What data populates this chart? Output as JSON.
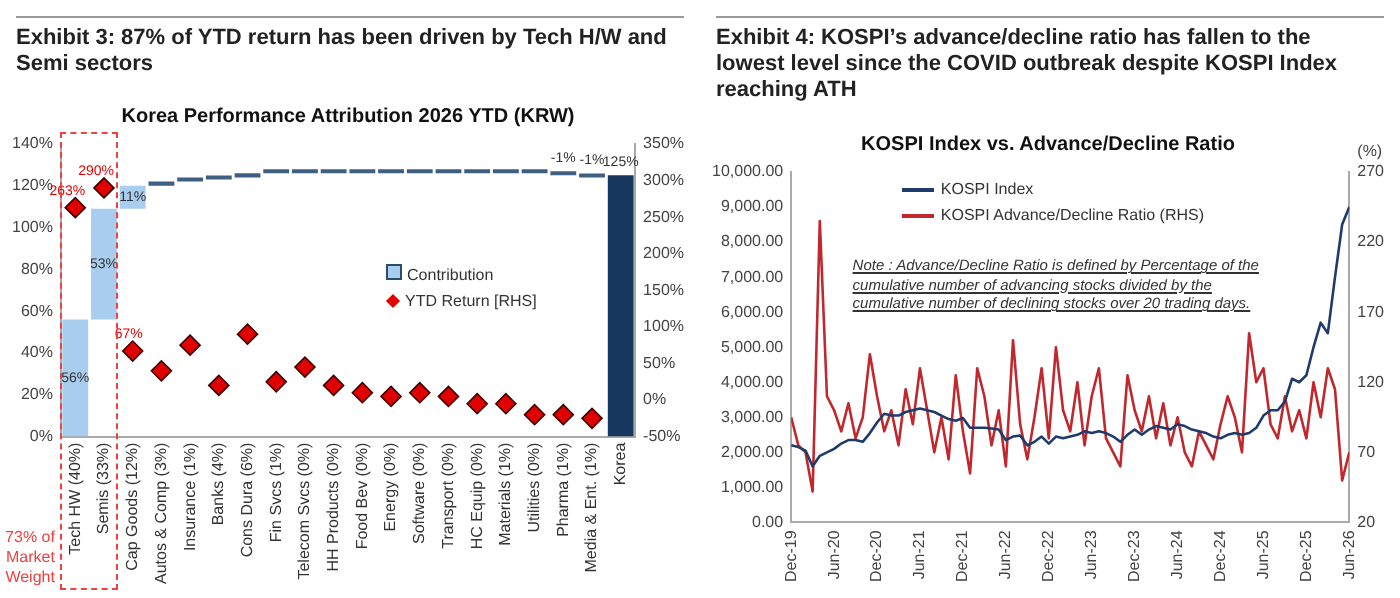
{
  "chart_data": [
    {
      "type": "bar",
      "title": "Exhibit 3: 87% of YTD return has been driven by Tech H/W and Semi sectors",
      "subtitle": "Korea Performance Attribution 2026 YTD (KRW)",
      "categories": [
        "Tech HW (40%)",
        "Semis (33%)",
        "Cap Goods (12%)",
        "Autos & Comp (3%)",
        "Insurance (1%)",
        "Banks (4%)",
        "Cons Dura (6%)",
        "Fin Svcs (1%)",
        "Telecom Svcs (0%)",
        "HH Products (0%)",
        "Food Bev (0%)",
        "Energy (0%)",
        "Software (0%)",
        "Transport (0%)",
        "HC Equip (0%)",
        "Materials (1%)",
        "Utilities (0%)",
        "Pharma (1%)",
        "Media & Ent. (1%)",
        "Korea"
      ],
      "series": [
        {
          "name": "Contribution",
          "type": "bar",
          "base": [
            0,
            56,
            109,
            120,
            122,
            123,
            124,
            126,
            126,
            126,
            126,
            126,
            126,
            126,
            126,
            126,
            126,
            126,
            125,
            0
          ],
          "colors": [
            "#a8cdef",
            "#a8cdef",
            "#a8cdef",
            "#3f5f82",
            "#3f5f82",
            "#3f5f82",
            "#3f5f82",
            "#3f5f82",
            "#3f5f82",
            "#3f5f82",
            "#3f5f82",
            "#3f5f82",
            "#3f5f82",
            "#3f5f82",
            "#3f5f82",
            "#3f5f82",
            "#3f5f82",
            "#3f5f82",
            "#3f5f82",
            "#17375e"
          ],
          "values": [
            56,
            53,
            11,
            2,
            1,
            1,
            2,
            0,
            0,
            0,
            0,
            0,
            0,
            0,
            0,
            0,
            0,
            -1,
            -1,
            125
          ],
          "value_labels": [
            "56%",
            "53%",
            "11%",
            null,
            null,
            null,
            null,
            null,
            null,
            null,
            null,
            null,
            null,
            null,
            null,
            null,
            null,
            "-1%",
            "-1%",
            "125%"
          ]
        },
        {
          "name": "YTD Return [RHS]",
          "type": "scatter",
          "axis": "y2",
          "marker": "diamond",
          "color": "#e00000",
          "values": [
            263,
            290,
            67,
            40,
            75,
            20,
            90,
            25,
            45,
            20,
            10,
            5,
            10,
            5,
            -5,
            -5,
            -20,
            -20,
            -25,
            null
          ],
          "value_labels": [
            "263%",
            "290%",
            "67%",
            null,
            null,
            null,
            null,
            null,
            null,
            null,
            null,
            null,
            null,
            null,
            null,
            null,
            null,
            null,
            null,
            null
          ]
        }
      ],
      "ylim": [
        0,
        140
      ],
      "yticks": [
        {
          "value": 0,
          "label": "0%"
        },
        {
          "value": 20,
          "label": "20%"
        },
        {
          "value": 40,
          "label": "40%"
        },
        {
          "value": 60,
          "label": "60%"
        },
        {
          "value": 80,
          "label": "80%"
        },
        {
          "value": 100,
          "label": "100%"
        },
        {
          "value": 120,
          "label": "120%"
        },
        {
          "value": 140,
          "label": "140%"
        }
      ],
      "y2lim": [
        -50,
        350
      ],
      "y2ticks": [
        {
          "value": -50,
          "label": "-50%"
        },
        {
          "value": 0,
          "label": "0%"
        },
        {
          "value": 50,
          "label": "50%"
        },
        {
          "value": 100,
          "label": "100%"
        },
        {
          "value": 150,
          "label": "150%"
        },
        {
          "value": 200,
          "label": "200%"
        },
        {
          "value": 250,
          "label": "250%"
        },
        {
          "value": 300,
          "label": "300%"
        },
        {
          "value": 350,
          "label": "350%"
        }
      ],
      "legend": "right",
      "annotations": [
        "73% of Market Weight"
      ]
    },
    {
      "type": "line",
      "title": "Exhibit 4: KOSPI’s advance/decline ratio has fallen to the lowest level since the COVID outbreak despite KOSPI Index reaching ATH",
      "subtitle": "KOSPI Index vs. Advance/Decline Ratio",
      "x": [
        "2019-12",
        "2020-01",
        "2020-02",
        "2020-03",
        "2020-04",
        "2020-05",
        "2020-06",
        "2020-07",
        "2020-08",
        "2020-09",
        "2020-10",
        "2020-11",
        "2020-12",
        "2021-01",
        "2021-02",
        "2021-03",
        "2021-04",
        "2021-05",
        "2021-06",
        "2021-07",
        "2021-08",
        "2021-09",
        "2021-10",
        "2021-11",
        "2021-12",
        "2022-01",
        "2022-02",
        "2022-03",
        "2022-04",
        "2022-05",
        "2022-06",
        "2022-07",
        "2022-08",
        "2022-09",
        "2022-10",
        "2022-11",
        "2022-12",
        "2023-01",
        "2023-02",
        "2023-03",
        "2023-04",
        "2023-05",
        "2023-06",
        "2023-07",
        "2023-08",
        "2023-09",
        "2023-10",
        "2023-11",
        "2023-12",
        "2024-01",
        "2024-02",
        "2024-03",
        "2024-04",
        "2024-05",
        "2024-06",
        "2024-07",
        "2024-08",
        "2024-09",
        "2024-10",
        "2024-11",
        "2024-12",
        "2025-01",
        "2025-02",
        "2025-03",
        "2025-04",
        "2025-05",
        "2025-06",
        "2025-07",
        "2025-08",
        "2025-09",
        "2025-10",
        "2025-11",
        "2025-12",
        "2026-01",
        "2026-02",
        "2026-03",
        "2026-04",
        "2026-05",
        "2026-06"
      ],
      "series": [
        {
          "name": "KOSPI Index",
          "color": "#1f3b6e",
          "values": [
            2200,
            2150,
            2050,
            1600,
            1900,
            2000,
            2100,
            2250,
            2350,
            2350,
            2300,
            2550,
            2850,
            3100,
            3050,
            3050,
            3150,
            3200,
            3250,
            3200,
            3150,
            3050,
            2950,
            2900,
            2980,
            2700,
            2700,
            2700,
            2680,
            2650,
            2350,
            2450,
            2480,
            2200,
            2300,
            2450,
            2250,
            2450,
            2400,
            2450,
            2500,
            2600,
            2550,
            2600,
            2550,
            2450,
            2300,
            2500,
            2650,
            2500,
            2650,
            2750,
            2700,
            2650,
            2800,
            2750,
            2650,
            2600,
            2550,
            2450,
            2400,
            2500,
            2550,
            2500,
            2550,
            2700,
            3050,
            3200,
            3200,
            3450,
            4100,
            4000,
            4200,
            5000,
            5700,
            5400,
            7000,
            8500,
            9000
          ]
        },
        {
          "name": "KOSPI Advance/Decline Ratio (RHS)",
          "color": "#c0282d",
          "axis": "y2",
          "values": [
            95,
            75,
            70,
            42,
            235,
            110,
            100,
            85,
            105,
            80,
            95,
            140,
            110,
            85,
            100,
            75,
            115,
            90,
            130,
            100,
            70,
            95,
            65,
            125,
            85,
            55,
            130,
            110,
            75,
            100,
            60,
            150,
            90,
            65,
            95,
            130,
            80,
            145,
            100,
            85,
            120,
            75,
            110,
            130,
            80,
            70,
            60,
            125,
            100,
            85,
            110,
            80,
            105,
            75,
            95,
            70,
            60,
            85,
            75,
            65,
            90,
            110,
            95,
            70,
            155,
            120,
            130,
            90,
            80,
            110,
            85,
            100,
            80,
            120,
            95,
            130,
            115,
            50,
            70
          ]
        }
      ],
      "xlim": [
        "2019-12",
        "2026-06"
      ],
      "xticks": [
        {
          "value": "2019-12",
          "label": "Dec-19"
        },
        {
          "value": "2020-06",
          "label": "Jun-20"
        },
        {
          "value": "2020-12",
          "label": "Dec-20"
        },
        {
          "value": "2021-06",
          "label": "Jun-21"
        },
        {
          "value": "2021-12",
          "label": "Dec-21"
        },
        {
          "value": "2022-06",
          "label": "Jun-22"
        },
        {
          "value": "2022-12",
          "label": "Dec-22"
        },
        {
          "value": "2023-06",
          "label": "Jun-23"
        },
        {
          "value": "2023-12",
          "label": "Dec-23"
        },
        {
          "value": "2024-06",
          "label": "Jun-24"
        },
        {
          "value": "2024-12",
          "label": "Dec-24"
        },
        {
          "value": "2025-06",
          "label": "Jun-25"
        },
        {
          "value": "2025-12",
          "label": "Dec-25"
        },
        {
          "value": "2026-06",
          "label": "Jun-26"
        }
      ],
      "ylim": [
        0,
        10000
      ],
      "yticks": [
        {
          "value": 0,
          "label": "0.00"
        },
        {
          "value": 1000,
          "label": "1,000.00"
        },
        {
          "value": 2000,
          "label": "2,000.00"
        },
        {
          "value": 3000,
          "label": "3,000.00"
        },
        {
          "value": 4000,
          "label": "4,000.00"
        },
        {
          "value": 5000,
          "label": "5,000.00"
        },
        {
          "value": 6000,
          "label": "6,000.00"
        },
        {
          "value": 7000,
          "label": "7,000.00"
        },
        {
          "value": 8000,
          "label": "8,000.00"
        },
        {
          "value": 9000,
          "label": "9,000.00"
        },
        {
          "value": 10000,
          "label": "10,000.00"
        }
      ],
      "y2lim": [
        20,
        270
      ],
      "y2ticks": [
        20,
        70,
        120,
        170,
        220,
        270
      ],
      "y2label": "(%)",
      "legend": "top left",
      "annotations": [
        "Note : Advance/Decline Ratio is defined by Percentage of the cumulative number of advancing stocks divided by the cumulative number of declining stocks over 20 trading days."
      ]
    }
  ]
}
